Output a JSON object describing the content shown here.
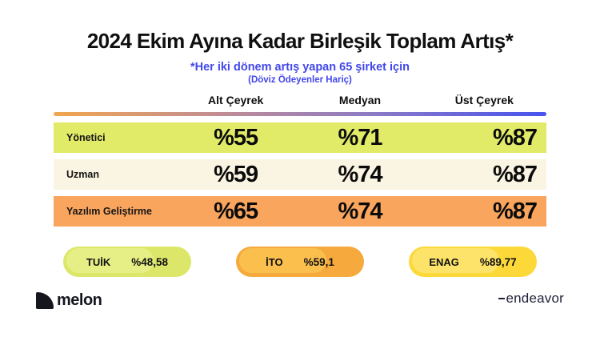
{
  "header": {
    "title": "2024 Ekim Ayına Kadar Birleşik Toplam Artış*",
    "subtitle": "*Her iki dönem artış yapan 65 şirket için",
    "note": "(Döviz Ödeyenler Hariç)"
  },
  "colors": {
    "accent_blue": "#4247EA",
    "gradient_left": "#F2A64F",
    "gradient_mid": "#8B7BC6",
    "gradient_right": "#4853EF"
  },
  "chart_data": {
    "type": "table",
    "title": "2024 Ekim Ayına Kadar Birleşik Toplam Artış*",
    "columns": [
      "Alt Çeyrek",
      "Medyan",
      "Üst Çeyrek"
    ],
    "rows": [
      {
        "label": "Yönetici",
        "values": [
          "%55",
          "%71",
          "%87"
        ],
        "bg": "#E2EB68"
      },
      {
        "label": "Uzman",
        "values": [
          "%59",
          "%74",
          "%87"
        ],
        "bg": "#FAF4E2"
      },
      {
        "label": "Yazılım Geliştirme",
        "values": [
          "%65",
          "%74",
          "%87"
        ],
        "bg": "#F9A55E"
      }
    ],
    "benchmarks": [
      {
        "label": "TUİK",
        "value": "%48,58",
        "bg": "#DCE76A",
        "highlight": "#E6EF85"
      },
      {
        "label": "İTO",
        "value": "%59,1",
        "bg": "#F6A93C",
        "highlight": "#FBBF4E"
      },
      {
        "label": "ENAG",
        "value": "%89,77",
        "bg": "#FCD839",
        "highlight": "#FDE36A"
      }
    ]
  },
  "footer": {
    "brand_left": "melon",
    "brand_right": "endeavor"
  }
}
